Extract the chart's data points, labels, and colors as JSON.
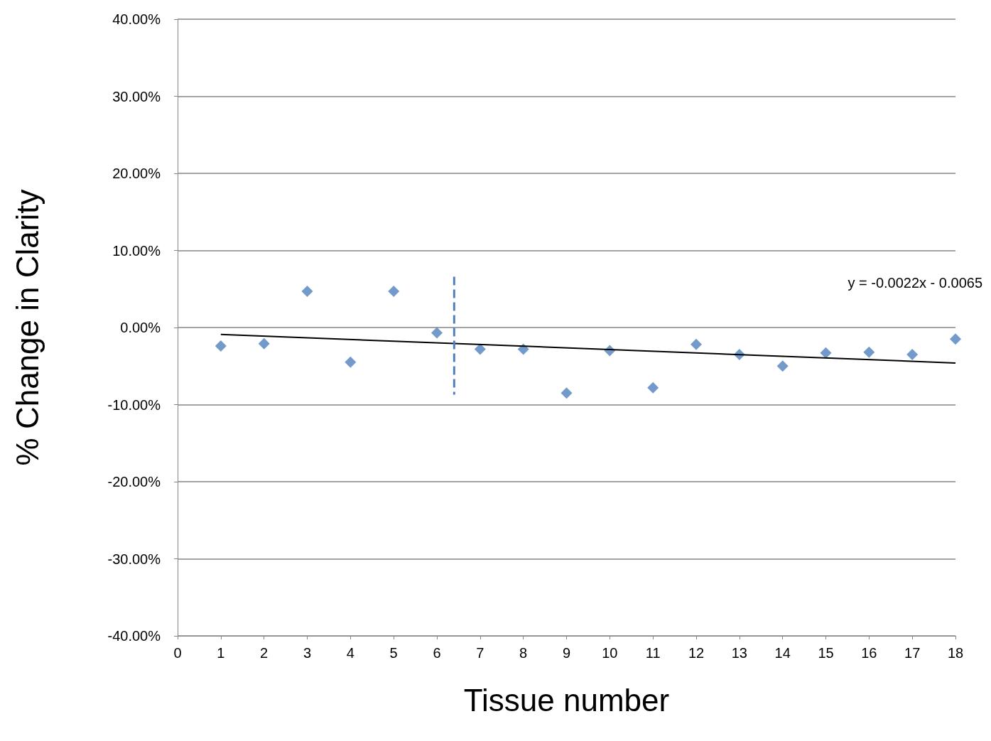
{
  "chart_data": {
    "type": "scatter",
    "xlabel": "Tissue number",
    "ylabel": "% Change in Clarity",
    "x": [
      1,
      2,
      3,
      4,
      5,
      6,
      7,
      8,
      9,
      10,
      11,
      12,
      13,
      14,
      15,
      16,
      17,
      18
    ],
    "series": [
      {
        "color": "#4f81bd",
        "marker": "diamond",
        "values": [
          -0.024,
          -0.021,
          0.047,
          -0.045,
          0.047,
          -0.007,
          -0.028,
          -0.028,
          -0.085,
          -0.03,
          -0.078,
          -0.022,
          -0.035,
          -0.05,
          -0.033,
          -0.032,
          -0.035,
          -0.015
        ]
      },
      {
        "type": "line",
        "color": "#000000",
        "x": [
          1,
          18
        ],
        "values": [
          -0.009,
          -0.046
        ],
        "line_style": "solid"
      },
      {
        "type": "line",
        "color": "#4f81bd",
        "x": [
          6.4,
          6.4
        ],
        "values": [
          0.066,
          -0.087
        ],
        "line_style": "dashed"
      }
    ],
    "annotations": [
      "y = -0.0022x - 0.0065"
    ],
    "xlim": [
      0,
      18
    ],
    "xticks": [
      0,
      1,
      2,
      3,
      4,
      5,
      6,
      7,
      8,
      9,
      10,
      11,
      12,
      13,
      14,
      15,
      16,
      17,
      18
    ],
    "ylim": [
      -0.4,
      0.4
    ],
    "yticks": [
      {
        "value": -0.4,
        "label": "-40.00%"
      },
      {
        "value": -0.3,
        "label": "-30.00%"
      },
      {
        "value": -0.2,
        "label": "-20.00%"
      },
      {
        "value": -0.1,
        "label": "-10.00%"
      },
      {
        "value": 0,
        "label": "0.00%"
      },
      {
        "value": 0.1,
        "label": "10.00%"
      },
      {
        "value": 0.2,
        "label": "20.00%"
      },
      {
        "value": 0.3,
        "label": "30.00%"
      },
      {
        "value": 0.4,
        "label": "40.00%"
      }
    ],
    "grid": "y"
  }
}
